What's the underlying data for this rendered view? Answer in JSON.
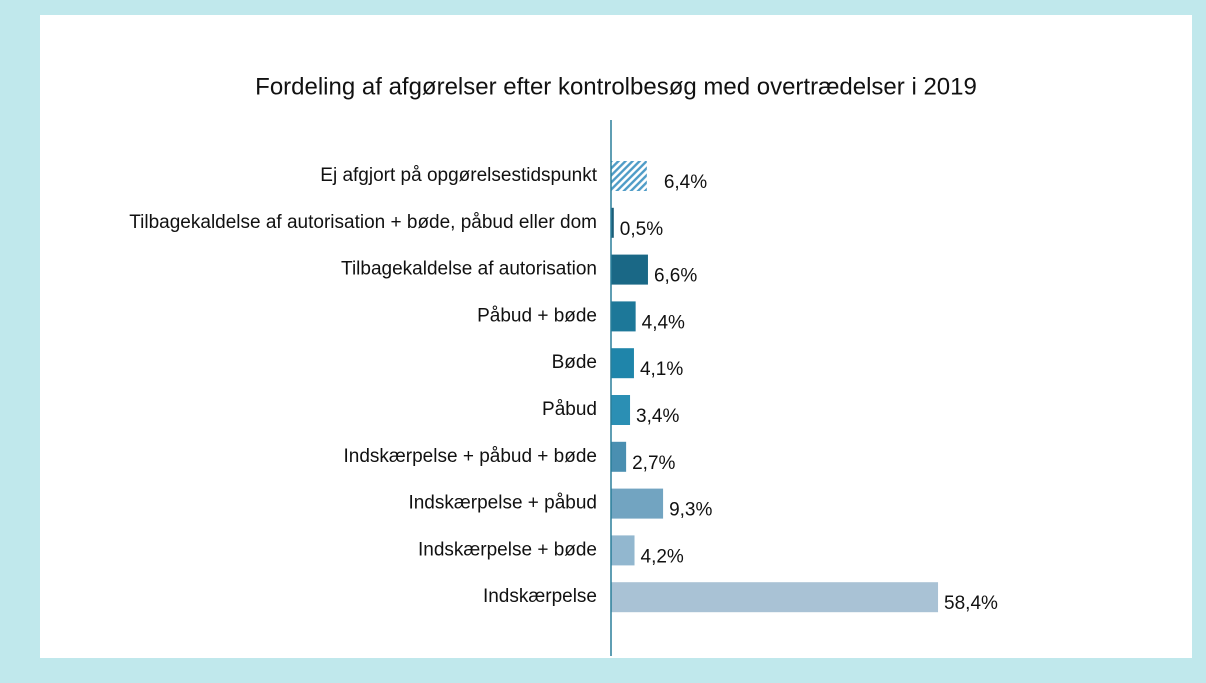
{
  "chart_data": {
    "type": "barh",
    "title": "Fordeling af afgørelser efter kontrolbesøg med overtrædelser i 2019",
    "categories": [
      "Ej afgjort på opgørelsestidspunkt",
      "Tilbagekaldelse af autorisation + bøde, påbud eller dom",
      "Tilbagekaldelse af autorisation",
      "Påbud + bøde",
      "Bøde",
      "Påbud",
      "Indskærpelse + påbud + bøde",
      "Indskærpelse + påbud",
      "Indskærpelse + bøde",
      "Indskærpelse"
    ],
    "values": [
      6.4,
      0.5,
      6.6,
      4.4,
      4.1,
      3.4,
      2.7,
      9.3,
      4.2,
      58.4
    ],
    "value_labels": [
      "6,4%",
      "0,5%",
      "6,6%",
      "4,4%",
      "4,1%",
      "3,4%",
      "2,7%",
      "9,3%",
      "4,2%",
      "58,4%"
    ],
    "colors": [
      "#4f9cc7",
      "#1b5d78",
      "#1a6886",
      "#1d7899",
      "#1f85aa",
      "#2b8fb4",
      "#4a8fb1",
      "#72a4c1",
      "#92b7cf",
      "#a9c2d5"
    ],
    "patterns": [
      "hatch",
      "solid",
      "solid",
      "solid",
      "solid",
      "solid",
      "solid",
      "solid",
      "solid",
      "solid"
    ],
    "xlim": [
      0,
      100
    ]
  }
}
